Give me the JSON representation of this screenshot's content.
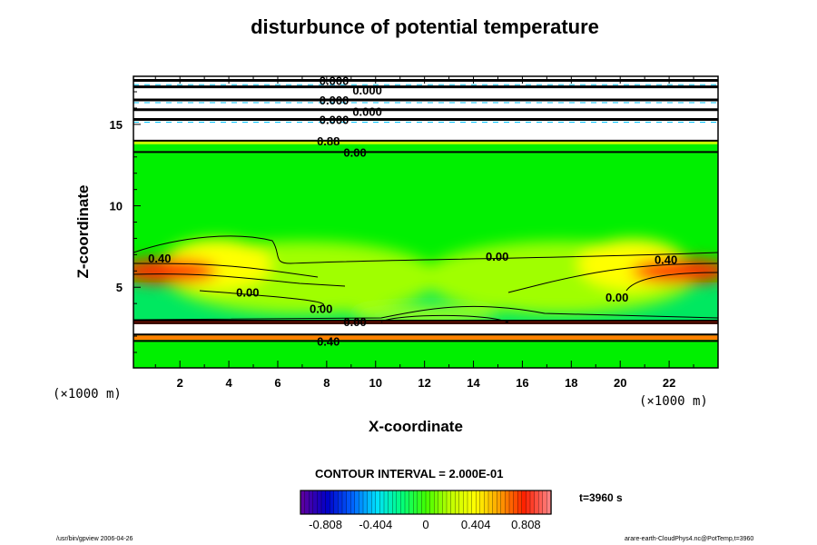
{
  "chart_data": {
    "type": "heatmap",
    "title": "disturbunce of potential temperature",
    "xlabel": "X-coordinate",
    "ylabel": "Z-coordinate",
    "x_unit_left": "(×1000 m)",
    "x_unit_right": "(×1000 m)",
    "xlim": [
      0.1,
      24
    ],
    "ylim": [
      0.05,
      17.95
    ],
    "xticks": [
      2,
      4,
      6,
      8,
      10,
      12,
      14,
      16,
      18,
      20,
      22
    ],
    "yticks": [
      5,
      10,
      15
    ],
    "contour_interval_text": "CONTOUR INTERVAL = 2.000E-01",
    "time_text": "t=3960 s",
    "colorbar": {
      "range": [
        -1.01,
        1.01
      ],
      "ticks": [
        "-0.808",
        "-0.404",
        "0",
        "0.404",
        "0.808"
      ],
      "tick_values": [
        -0.808,
        -0.404,
        0,
        0.404,
        0.808
      ],
      "colors": [
        "#5a00a0",
        "#0000c8",
        "#0060ff",
        "#00e0ff",
        "#00ff80",
        "#40ff00",
        "#c0ff00",
        "#ffff00",
        "#ffa000",
        "#ff2000",
        "#ff8080"
      ]
    },
    "contour_labels": [
      {
        "text": "0.40",
        "x": 0.7,
        "y": 6.8
      },
      {
        "text": "0.00",
        "x": 14.5,
        "y": 6.9
      },
      {
        "text": "0.40",
        "x": 21.4,
        "y": 6.7
      },
      {
        "text": "0.00",
        "x": 4.3,
        "y": 4.7
      },
      {
        "text": "0.00",
        "x": 19.4,
        "y": 4.4
      },
      {
        "text": "0.00",
        "x": 7.3,
        "y": 3.7
      },
      {
        "text": "0.88",
        "x": 7.6,
        "y": 14.0
      },
      {
        "text": "0.00",
        "x": 7.6,
        "y": 13.3
      },
      {
        "text": "0.00",
        "x": 7.6,
        "y": 2.9
      },
      {
        "text": "0.40",
        "x": 7.6,
        "y": 1.7
      },
      {
        "text": "0.000",
        "x": 7.7,
        "y": 17.7
      },
      {
        "text": "0.000",
        "x": 7.7,
        "y": 17.1
      },
      {
        "text": "0.000",
        "x": 7.7,
        "y": 16.5
      },
      {
        "text": "0.000",
        "x": 7.7,
        "y": 15.8
      },
      {
        "text": "0.000",
        "x": 7.7,
        "y": 15.3
      }
    ]
  },
  "footer": {
    "left": "/usr/bin/gpview 2006-04-26",
    "right": "arare-earth-CloudPhys4.nc@PotTemp,t=3960"
  }
}
